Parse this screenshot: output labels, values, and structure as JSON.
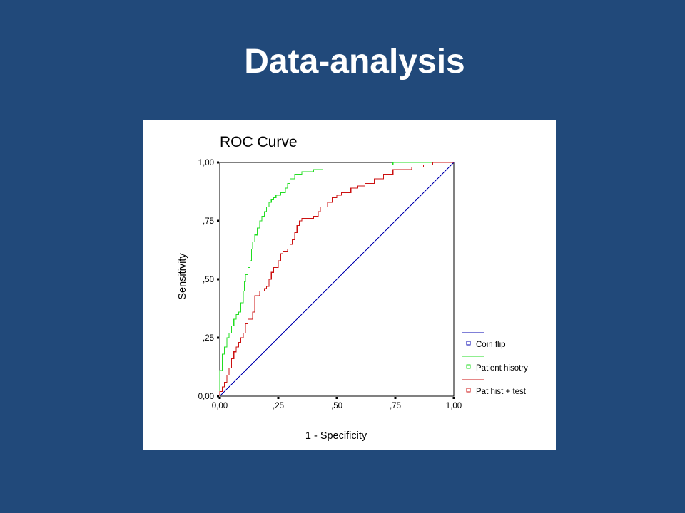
{
  "slide": {
    "title": "Data-analysis"
  },
  "colors": {
    "background": "#21497a",
    "panel": "#ffffff"
  },
  "chart_data": {
    "type": "line",
    "title": "ROC Curve",
    "xlabel": "1 - Specificity",
    "ylabel": "Sensitivity",
    "xlim": [
      0,
      1
    ],
    "ylim": [
      0,
      1
    ],
    "xticks": [
      0,
      0.25,
      0.5,
      0.75,
      1
    ],
    "yticks": [
      0,
      0.25,
      0.5,
      0.75,
      1
    ],
    "xtick_labels": [
      "0,00",
      ",25",
      ",50",
      ",75",
      "1,00"
    ],
    "ytick_labels": [
      "0,00",
      ",25",
      ",50",
      ",75",
      "1,00"
    ],
    "grid": false,
    "legend_position": "bottom-right",
    "series": [
      {
        "name": "Coin flip",
        "color": "#0000b0",
        "step": false,
        "points": [
          [
            0,
            0
          ],
          [
            1,
            1
          ]
        ]
      },
      {
        "name": "Patient hisotry",
        "color": "#22dd22",
        "step": true,
        "points": [
          [
            0.0,
            0.0
          ],
          [
            0.0,
            0.11
          ],
          [
            0.01,
            0.11
          ],
          [
            0.01,
            0.18
          ],
          [
            0.02,
            0.18
          ],
          [
            0.02,
            0.21
          ],
          [
            0.03,
            0.21
          ],
          [
            0.03,
            0.25
          ],
          [
            0.04,
            0.25
          ],
          [
            0.04,
            0.27
          ],
          [
            0.05,
            0.27
          ],
          [
            0.05,
            0.3
          ],
          [
            0.06,
            0.3
          ],
          [
            0.06,
            0.33
          ],
          [
            0.07,
            0.33
          ],
          [
            0.07,
            0.35
          ],
          [
            0.08,
            0.35
          ],
          [
            0.08,
            0.36
          ],
          [
            0.09,
            0.36
          ],
          [
            0.09,
            0.4
          ],
          [
            0.1,
            0.4
          ],
          [
            0.1,
            0.45
          ],
          [
            0.105,
            0.45
          ],
          [
            0.105,
            0.49
          ],
          [
            0.11,
            0.49
          ],
          [
            0.11,
            0.52
          ],
          [
            0.12,
            0.52
          ],
          [
            0.12,
            0.55
          ],
          [
            0.13,
            0.55
          ],
          [
            0.13,
            0.58
          ],
          [
            0.135,
            0.58
          ],
          [
            0.135,
            0.63
          ],
          [
            0.14,
            0.63
          ],
          [
            0.14,
            0.66
          ],
          [
            0.15,
            0.66
          ],
          [
            0.15,
            0.69
          ],
          [
            0.16,
            0.69
          ],
          [
            0.16,
            0.72
          ],
          [
            0.17,
            0.72
          ],
          [
            0.17,
            0.75
          ],
          [
            0.18,
            0.75
          ],
          [
            0.18,
            0.77
          ],
          [
            0.19,
            0.77
          ],
          [
            0.19,
            0.79
          ],
          [
            0.2,
            0.79
          ],
          [
            0.2,
            0.81
          ],
          [
            0.21,
            0.81
          ],
          [
            0.21,
            0.83
          ],
          [
            0.22,
            0.83
          ],
          [
            0.22,
            0.84
          ],
          [
            0.23,
            0.84
          ],
          [
            0.23,
            0.85
          ],
          [
            0.24,
            0.85
          ],
          [
            0.24,
            0.86
          ],
          [
            0.26,
            0.86
          ],
          [
            0.26,
            0.87
          ],
          [
            0.28,
            0.87
          ],
          [
            0.28,
            0.89
          ],
          [
            0.29,
            0.89
          ],
          [
            0.29,
            0.91
          ],
          [
            0.3,
            0.91
          ],
          [
            0.3,
            0.93
          ],
          [
            0.32,
            0.93
          ],
          [
            0.32,
            0.95
          ],
          [
            0.35,
            0.95
          ],
          [
            0.35,
            0.96
          ],
          [
            0.4,
            0.96
          ],
          [
            0.4,
            0.97
          ],
          [
            0.44,
            0.97
          ],
          [
            0.44,
            0.98
          ],
          [
            0.45,
            0.98
          ],
          [
            0.45,
            0.99
          ],
          [
            0.74,
            0.99
          ],
          [
            0.74,
            1.0
          ],
          [
            1.0,
            1.0
          ]
        ]
      },
      {
        "name": "Pat hist + test",
        "color": "#cc1111",
        "step": true,
        "points": [
          [
            0.0,
            0.0
          ],
          [
            0.0,
            0.02
          ],
          [
            0.01,
            0.02
          ],
          [
            0.01,
            0.04
          ],
          [
            0.02,
            0.04
          ],
          [
            0.02,
            0.06
          ],
          [
            0.03,
            0.06
          ],
          [
            0.03,
            0.09
          ],
          [
            0.04,
            0.09
          ],
          [
            0.04,
            0.12
          ],
          [
            0.05,
            0.12
          ],
          [
            0.05,
            0.16
          ],
          [
            0.06,
            0.16
          ],
          [
            0.06,
            0.19
          ],
          [
            0.07,
            0.19
          ],
          [
            0.07,
            0.21
          ],
          [
            0.08,
            0.21
          ],
          [
            0.08,
            0.23
          ],
          [
            0.09,
            0.23
          ],
          [
            0.09,
            0.25
          ],
          [
            0.1,
            0.25
          ],
          [
            0.1,
            0.27
          ],
          [
            0.11,
            0.27
          ],
          [
            0.11,
            0.31
          ],
          [
            0.12,
            0.31
          ],
          [
            0.12,
            0.33
          ],
          [
            0.14,
            0.33
          ],
          [
            0.14,
            0.36
          ],
          [
            0.15,
            0.36
          ],
          [
            0.15,
            0.43
          ],
          [
            0.17,
            0.43
          ],
          [
            0.17,
            0.45
          ],
          [
            0.19,
            0.45
          ],
          [
            0.19,
            0.46
          ],
          [
            0.2,
            0.46
          ],
          [
            0.2,
            0.47
          ],
          [
            0.21,
            0.47
          ],
          [
            0.21,
            0.5
          ],
          [
            0.22,
            0.5
          ],
          [
            0.22,
            0.53
          ],
          [
            0.23,
            0.53
          ],
          [
            0.23,
            0.55
          ],
          [
            0.25,
            0.55
          ],
          [
            0.25,
            0.58
          ],
          [
            0.26,
            0.58
          ],
          [
            0.26,
            0.61
          ],
          [
            0.27,
            0.61
          ],
          [
            0.27,
            0.62
          ],
          [
            0.29,
            0.62
          ],
          [
            0.29,
            0.63
          ],
          [
            0.3,
            0.63
          ],
          [
            0.3,
            0.65
          ],
          [
            0.31,
            0.65
          ],
          [
            0.31,
            0.67
          ],
          [
            0.32,
            0.67
          ],
          [
            0.32,
            0.7
          ],
          [
            0.33,
            0.7
          ],
          [
            0.33,
            0.73
          ],
          [
            0.34,
            0.73
          ],
          [
            0.34,
            0.75
          ],
          [
            0.35,
            0.75
          ],
          [
            0.35,
            0.76
          ],
          [
            0.4,
            0.76
          ],
          [
            0.4,
            0.77
          ],
          [
            0.42,
            0.77
          ],
          [
            0.42,
            0.79
          ],
          [
            0.43,
            0.79
          ],
          [
            0.43,
            0.81
          ],
          [
            0.46,
            0.81
          ],
          [
            0.46,
            0.83
          ],
          [
            0.48,
            0.83
          ],
          [
            0.48,
            0.85
          ],
          [
            0.5,
            0.85
          ],
          [
            0.5,
            0.86
          ],
          [
            0.52,
            0.86
          ],
          [
            0.52,
            0.87
          ],
          [
            0.56,
            0.87
          ],
          [
            0.56,
            0.89
          ],
          [
            0.59,
            0.89
          ],
          [
            0.59,
            0.9
          ],
          [
            0.62,
            0.9
          ],
          [
            0.62,
            0.91
          ],
          [
            0.66,
            0.91
          ],
          [
            0.66,
            0.93
          ],
          [
            0.7,
            0.93
          ],
          [
            0.7,
            0.95
          ],
          [
            0.74,
            0.95
          ],
          [
            0.74,
            0.97
          ],
          [
            0.82,
            0.97
          ],
          [
            0.82,
            0.98
          ],
          [
            0.87,
            0.98
          ],
          [
            0.87,
            0.99
          ],
          [
            0.91,
            0.99
          ],
          [
            0.91,
            1.0
          ],
          [
            1.0,
            1.0
          ]
        ]
      }
    ]
  }
}
